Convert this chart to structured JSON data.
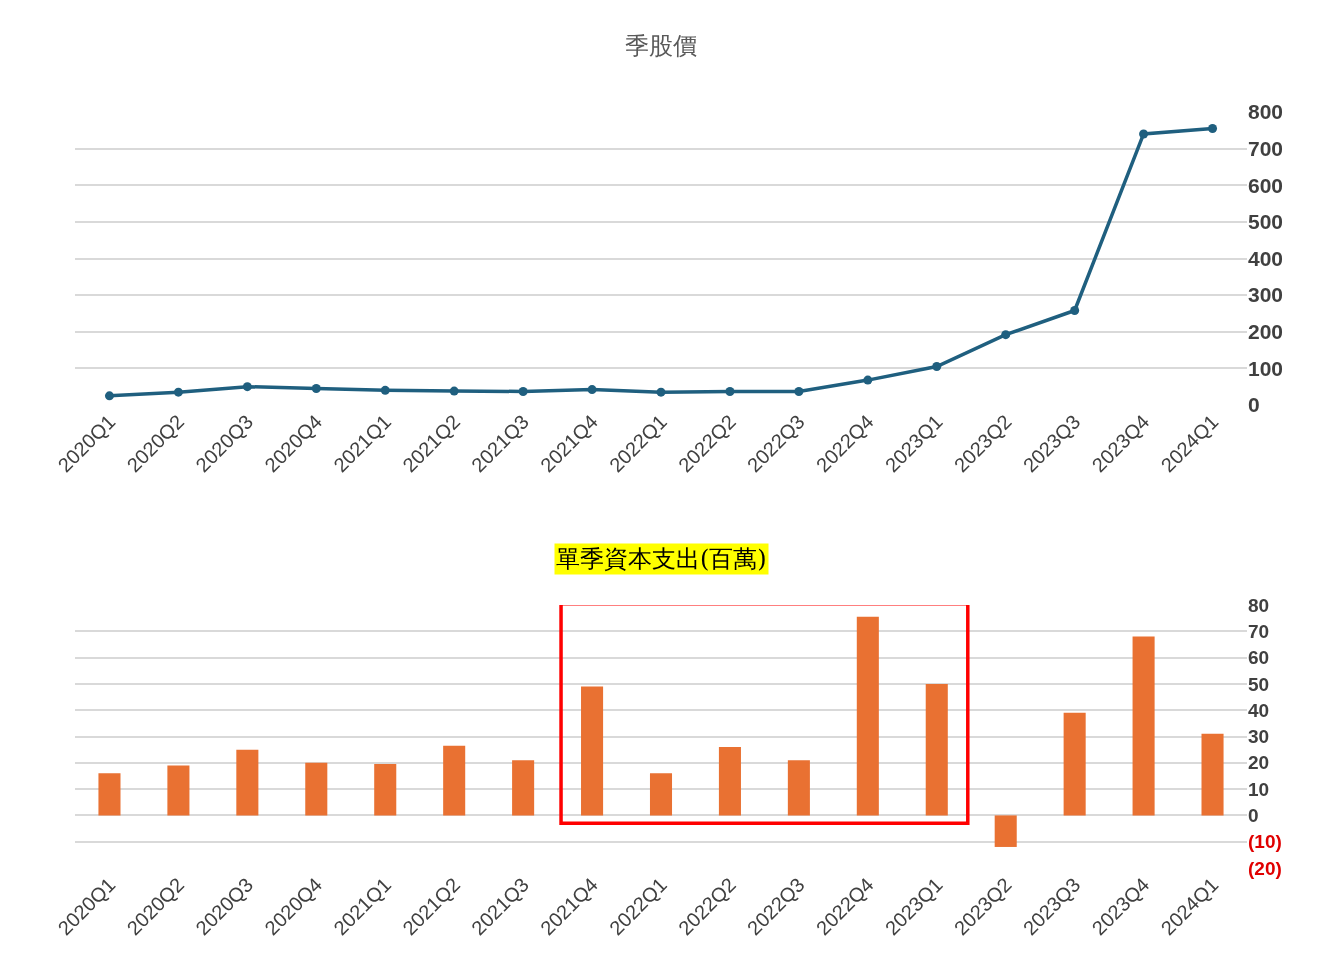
{
  "chart_data": [
    {
      "type": "line",
      "title": "季股價",
      "categories": [
        "2020Q1",
        "2020Q2",
        "2020Q3",
        "2020Q4",
        "2021Q1",
        "2021Q2",
        "2021Q3",
        "2021Q4",
        "2022Q1",
        "2022Q2",
        "2022Q3",
        "2022Q4",
        "2023Q1",
        "2023Q2",
        "2023Q3",
        "2023Q4",
        "2024Q1"
      ],
      "series": [
        {
          "color": "#1f5f7f",
          "values": [
            25,
            35,
            50,
            45,
            40,
            38,
            37,
            42,
            35,
            37,
            37,
            68,
            105,
            192,
            258,
            740,
            755
          ]
        }
      ],
      "ylim": [
        0,
        800
      ],
      "yticks": [
        0,
        100,
        200,
        300,
        400,
        500,
        600,
        700,
        800
      ],
      "grid": "y",
      "marker": "circle",
      "line_style": "solid"
    },
    {
      "type": "bar",
      "title": "單季資本支出(百萬)",
      "categories": [
        "2020Q1",
        "2020Q2",
        "2020Q3",
        "2020Q4",
        "2021Q1",
        "2021Q2",
        "2021Q3",
        "2021Q4",
        "2022Q1",
        "2022Q2",
        "2022Q3",
        "2022Q4",
        "2023Q1",
        "2023Q2",
        "2023Q3",
        "2023Q4",
        "2024Q1"
      ],
      "series": [
        {
          "color": "#e97132",
          "values": [
            16,
            19,
            25,
            20,
            19.5,
            26.5,
            21,
            49,
            16,
            26,
            21,
            75.5,
            50,
            -12,
            39,
            68,
            31
          ]
        }
      ],
      "ylim": [
        -20,
        80
      ],
      "yticks": [
        {
          "value": -20,
          "label": "(20)"
        },
        {
          "value": -10,
          "label": "(10)"
        },
        0,
        10,
        20,
        30,
        40,
        50,
        60,
        70,
        80
      ],
      "grid": "y"
    }
  ]
}
